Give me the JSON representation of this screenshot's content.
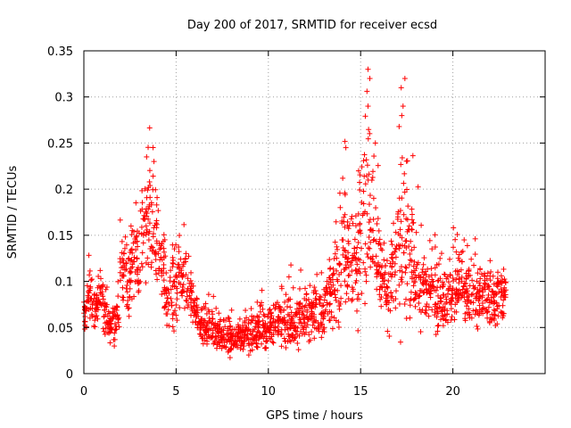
{
  "chart_data": {
    "type": "scatter",
    "title": "Day 200 of 2017, SRMTID for receiver ecsd",
    "xlabel": "GPS time / hours",
    "ylabel": "SRMTID / TECUs",
    "xlim": [
      0,
      25
    ],
    "ylim": [
      0,
      0.35
    ],
    "xticks": [
      0,
      5,
      10,
      15,
      20
    ],
    "xtick_labels": [
      "0",
      "5",
      "10",
      "15",
      "20"
    ],
    "yticks": [
      0,
      0.05,
      0.1,
      0.15,
      0.2,
      0.25,
      0.3,
      0.35
    ],
    "ytick_labels": [
      "0",
      "0.05",
      "0.1",
      "0.15",
      "0.2",
      "0.25",
      "0.3",
      "0.35"
    ],
    "grid": true,
    "marker": "+",
    "color": "#ff0000",
    "series": [
      {
        "name": "SRMTID",
        "x": [
          0.0,
          0.3,
          0.6,
          0.9,
          1.2,
          1.5,
          1.8,
          2.1,
          2.4,
          2.7,
          3.0,
          3.3,
          3.6,
          3.9,
          4.2,
          4.5,
          4.8,
          5.1,
          5.4,
          5.7,
          6.0,
          6.3,
          6.6,
          6.9,
          7.2,
          7.5,
          7.8,
          8.1,
          8.4,
          8.7,
          9.0,
          9.3,
          9.6,
          9.9,
          10.2,
          10.5,
          10.8,
          11.1,
          11.4,
          11.7,
          12.0,
          12.3,
          12.6,
          12.9,
          13.2,
          13.5,
          13.8,
          14.1,
          14.4,
          14.7,
          15.0,
          15.3,
          15.6,
          15.9,
          16.2,
          16.5,
          16.8,
          17.1,
          17.4,
          17.7,
          18.0,
          18.3,
          18.6,
          18.9,
          19.2,
          19.5,
          19.8,
          20.1,
          20.4,
          20.7,
          21.0,
          21.3,
          21.6,
          21.9,
          22.2,
          22.5,
          22.8
        ],
        "values": [
          0.065,
          0.08,
          0.07,
          0.085,
          0.06,
          0.055,
          0.06,
          0.11,
          0.1,
          0.13,
          0.12,
          0.16,
          0.17,
          0.15,
          0.12,
          0.08,
          0.09,
          0.1,
          0.1,
          0.085,
          0.07,
          0.05,
          0.045,
          0.05,
          0.045,
          0.04,
          0.04,
          0.035,
          0.04,
          0.045,
          0.04,
          0.045,
          0.05,
          0.05,
          0.05,
          0.055,
          0.05,
          0.055,
          0.05,
          0.06,
          0.06,
          0.065,
          0.07,
          0.065,
          0.08,
          0.09,
          0.1,
          0.14,
          0.13,
          0.12,
          0.15,
          0.19,
          0.17,
          0.13,
          0.1,
          0.09,
          0.11,
          0.15,
          0.16,
          0.12,
          0.1,
          0.09,
          0.09,
          0.09,
          0.08,
          0.09,
          0.085,
          0.09,
          0.1,
          0.085,
          0.085,
          0.08,
          0.09,
          0.085,
          0.075,
          0.085,
          0.09
        ],
        "spread": [
          0.02,
          0.025,
          0.02,
          0.02,
          0.02,
          0.02,
          0.025,
          0.035,
          0.04,
          0.04,
          0.045,
          0.06,
          0.06,
          0.05,
          0.04,
          0.03,
          0.04,
          0.045,
          0.035,
          0.03,
          0.025,
          0.02,
          0.02,
          0.02,
          0.02,
          0.02,
          0.02,
          0.018,
          0.02,
          0.02,
          0.02,
          0.02,
          0.025,
          0.025,
          0.025,
          0.025,
          0.025,
          0.03,
          0.025,
          0.03,
          0.03,
          0.03,
          0.035,
          0.03,
          0.04,
          0.04,
          0.05,
          0.08,
          0.06,
          0.05,
          0.09,
          0.12,
          0.07,
          0.06,
          0.04,
          0.04,
          0.06,
          0.12,
          0.12,
          0.07,
          0.05,
          0.04,
          0.04,
          0.035,
          0.035,
          0.04,
          0.035,
          0.035,
          0.045,
          0.035,
          0.035,
          0.03,
          0.035,
          0.035,
          0.03,
          0.035,
          0.04
        ]
      }
    ]
  }
}
